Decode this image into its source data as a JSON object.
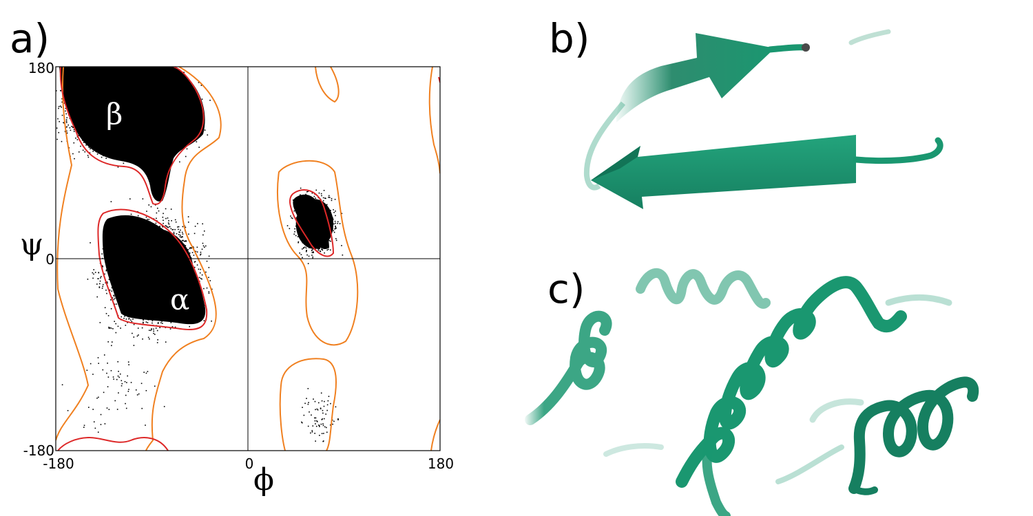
{
  "panels": {
    "a": "a)",
    "b": "b)",
    "c": "c)"
  },
  "ramachandran": {
    "xlabel": "ϕ",
    "ylabel": "ψ",
    "x_ticks": [
      "-180",
      "0",
      "180"
    ],
    "y_ticks": [
      "180",
      "0",
      "-180"
    ],
    "xlim": [
      -180,
      180
    ],
    "ylim": [
      -180,
      180
    ],
    "regions": {
      "beta": "β",
      "alpha": "α"
    },
    "colors": {
      "favored_contour": "#dd2828",
      "allowed_contour": "#f08020",
      "points": "#000000"
    }
  },
  "structures": {
    "sheet_color": "#1a9770",
    "helix_color": "#1a9770"
  },
  "chart_data": {
    "type": "scatter",
    "xlabel": "ϕ",
    "ylabel": "ψ",
    "xlim": [
      -180,
      180
    ],
    "ylim": [
      -180,
      180
    ],
    "x_ticks": [
      -180,
      0,
      180
    ],
    "y_ticks": [
      -180,
      0,
      180
    ],
    "grid": "lines at phi=0 and psi=0",
    "annotations": [
      {
        "text": "β",
        "x": -125,
        "y": 135
      },
      {
        "text": "α",
        "x": -63,
        "y": -42
      }
    ],
    "clusters": [
      {
        "region": "beta",
        "phi_range": [
          -180,
          -45
        ],
        "psi_range": [
          95,
          180
        ],
        "density": "very high"
      },
      {
        "region": "alpha",
        "phi_range": [
          -140,
          -40
        ],
        "psi_range": [
          -70,
          45
        ],
        "density": "very high"
      },
      {
        "region": "left-handed helix",
        "phi_range": [
          40,
          85
        ],
        "psi_range": [
          0,
          65
        ],
        "density": "high"
      },
      {
        "region": "bridge/sparse",
        "phi_range": [
          -170,
          -70
        ],
        "psi_range": [
          -180,
          -70
        ],
        "density": "low"
      },
      {
        "region": "sparse positive phi",
        "phi_range": [
          45,
          85
        ],
        "psi_range": [
          -180,
          -110
        ],
        "density": "low"
      }
    ]
  }
}
